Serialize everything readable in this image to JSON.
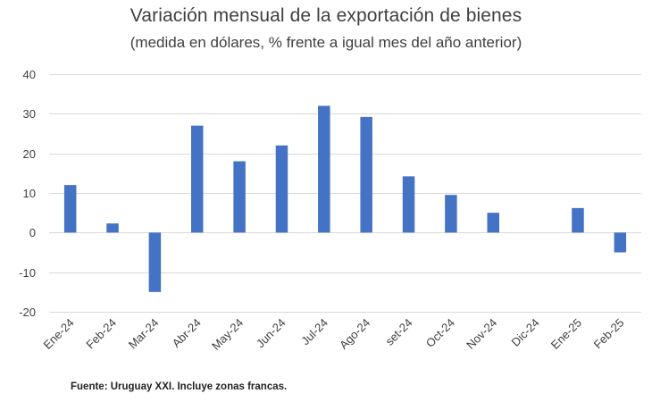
{
  "chart_data": {
    "type": "bar",
    "title": "Variación mensual de la exportación de bienes",
    "subtitle": "(medida en dólares, % frente a igual mes del año anterior)",
    "categories": [
      "Ene-24",
      "Feb-24",
      "Mar-24",
      "Abr-24",
      "May-24",
      "Jun-24",
      "Jul-24",
      "Ago-24",
      "set-24",
      "Oct-24",
      "Nov-24",
      "Dic-24",
      "Ene-25",
      "Feb-25"
    ],
    "values": [
      12,
      2.3,
      -15,
      27,
      18,
      22,
      32,
      29.2,
      14.2,
      9.5,
      5,
      0,
      6.2,
      -5
    ],
    "yticks": [
      "40",
      "30",
      "20",
      "10",
      "0",
      "-10",
      "-20"
    ],
    "ylim": [
      -20,
      40
    ],
    "xlabel": "",
    "ylabel": "",
    "grid": true,
    "legend": "none",
    "bar_color": "#4472c4",
    "source": "Fuente: Uruguay XXI. Incluye zonas francas."
  }
}
